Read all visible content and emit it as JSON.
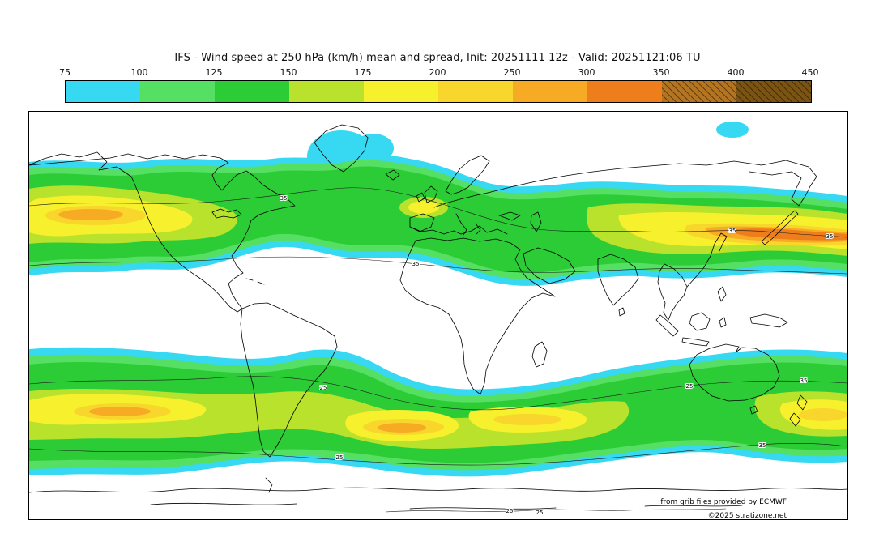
{
  "title": "IFS - Wind speed at 250 hPa (km/h) mean and spread, Init: 20251111 12z - Valid: 20251121:06 TU",
  "colorbar": {
    "ticks": [
      "75",
      "100",
      "125",
      "150",
      "175",
      "200",
      "250",
      "300",
      "350",
      "400",
      "450"
    ],
    "segments": [
      {
        "color": "#36d8f2",
        "hatch": false
      },
      {
        "color": "#55df63",
        "hatch": false
      },
      {
        "color": "#2ccc36",
        "hatch": false
      },
      {
        "color": "#b8e22c",
        "hatch": false
      },
      {
        "color": "#f7f12d",
        "hatch": false
      },
      {
        "color": "#f9d62b",
        "hatch": false
      },
      {
        "color": "#f7ab25",
        "hatch": false
      },
      {
        "color": "#ee7e1b",
        "hatch": false
      },
      {
        "color": "#b5741f",
        "hatch": true
      },
      {
        "color": "#7c5412",
        "hatch": true
      }
    ]
  },
  "map": {
    "labels": {
      "spread25": "25",
      "spread35": "35"
    },
    "credit": {
      "prefix": "from ",
      "link_word": "grib",
      "suffix": " files provided by ECMWF",
      "copyright": "©2025 stratizone.net"
    }
  },
  "chart_data": {
    "type": "filled_contour_map",
    "model": "IFS",
    "variable": "Wind speed at 250 hPa",
    "unit": "km/h",
    "statistic": "mean and spread",
    "init": "20251111 12z",
    "valid": "20251121:06 TU",
    "fill_levels": [
      75,
      100,
      125,
      150,
      175,
      200,
      250,
      300,
      350,
      400,
      450
    ],
    "fill_colors": [
      "#36d8f2",
      "#55df63",
      "#2ccc36",
      "#b8e22c",
      "#f7f12d",
      "#f9d62b",
      "#f7ab25",
      "#ee7e1b",
      "#b5741f",
      "#7c5412"
    ],
    "spread_contour_levels": [
      25,
      35
    ],
    "features": "Two wavy jet-stream bands circle the globe: a northern-hemisphere band with orange cores over the NE Pacific/western North America and over Japan/east Asia, and a southern-hemisphere band with yellow-orange cores over the SE Pacific, South Atlantic, south Indian Ocean and south of New Zealand.",
    "source_note": "from grib files provided by ECMWF"
  }
}
